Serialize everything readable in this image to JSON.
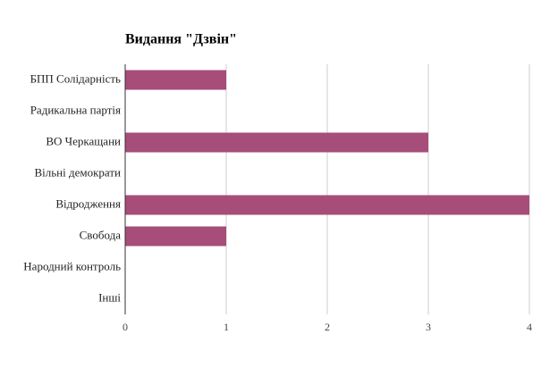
{
  "chart_data": {
    "type": "bar",
    "orientation": "horizontal",
    "title": "Видання \"Дзвін\"",
    "categories": [
      "БПП Солідарність",
      "Радикальна партія",
      "ВО Черкащани",
      "Вільні демократи",
      "Відродження",
      "Свобода",
      "Народний контроль",
      "Інші"
    ],
    "values": [
      1,
      0,
      3,
      0,
      4,
      1,
      0,
      0
    ],
    "color": "#a64d79",
    "xlim": [
      0,
      4
    ],
    "xticks": [
      0,
      1,
      2,
      3,
      4
    ],
    "grid": true
  }
}
